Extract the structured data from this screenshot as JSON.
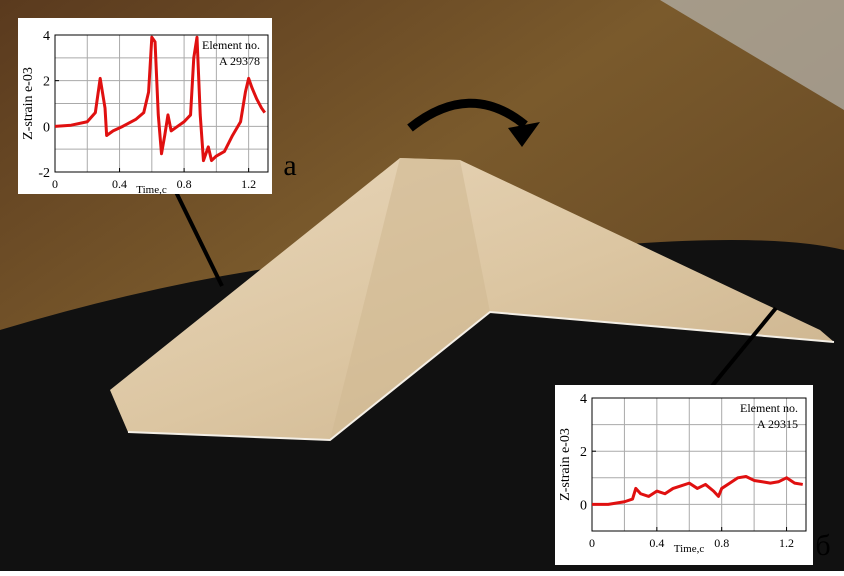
{
  "chart_data": [
    {
      "type": "line",
      "y_label": "Z-strain e-03",
      "x_label": "Time,c",
      "annotations": [
        "Element no.",
        "A 29378"
      ],
      "panel_label": "а",
      "color": "#e01010",
      "xlim": [
        0,
        1.32
      ],
      "xticks": [
        0,
        0.4,
        0.8,
        1.2
      ],
      "xgrid": [
        0.2,
        0.4,
        0.6,
        0.8,
        1.0,
        1.2
      ],
      "ylim": [
        -2,
        4
      ],
      "yticks": [
        -2,
        0,
        2,
        4
      ],
      "ygrid": [
        -1,
        0,
        1,
        2,
        3
      ],
      "x": [
        0,
        0.1,
        0.2,
        0.25,
        0.28,
        0.31,
        0.32,
        0.36,
        0.42,
        0.5,
        0.55,
        0.58,
        0.6,
        0.62,
        0.64,
        0.66,
        0.68,
        0.7,
        0.72,
        0.76,
        0.8,
        0.84,
        0.86,
        0.88,
        0.9,
        0.92,
        0.95,
        0.97,
        1.0,
        1.05,
        1.1,
        1.15,
        1.18,
        1.2,
        1.22,
        1.25,
        1.28,
        1.3
      ],
      "values": [
        0,
        0.05,
        0.2,
        0.6,
        2.1,
        0.8,
        -0.4,
        -0.2,
        0,
        0.3,
        0.6,
        1.5,
        3.9,
        3.7,
        0.5,
        -1.2,
        -0.4,
        0.5,
        -0.2,
        0,
        0.2,
        0.5,
        3.0,
        3.9,
        0.5,
        -1.5,
        -0.9,
        -1.5,
        -1.3,
        -1.1,
        -0.4,
        0.2,
        1.5,
        2.1,
        1.7,
        1.2,
        0.8,
        0.6
      ]
    },
    {
      "type": "line",
      "y_label": "Z-strain e-03",
      "x_label": "Time,c",
      "annotations": [
        "Element no.",
        "A 29315"
      ],
      "panel_label": "б",
      "color": "#e01010",
      "xlim": [
        0,
        1.32
      ],
      "xticks": [
        0,
        0.4,
        0.8,
        1.2
      ],
      "xgrid": [
        0.2,
        0.4,
        0.6,
        0.8,
        1.0,
        1.2
      ],
      "ylim": [
        -1,
        4
      ],
      "yticks": [
        0,
        2,
        4
      ],
      "ygrid": [
        0,
        1,
        2,
        3
      ],
      "x": [
        0,
        0.1,
        0.2,
        0.25,
        0.27,
        0.3,
        0.35,
        0.4,
        0.45,
        0.5,
        0.55,
        0.6,
        0.65,
        0.7,
        0.75,
        0.78,
        0.8,
        0.85,
        0.9,
        0.95,
        1.0,
        1.05,
        1.1,
        1.15,
        1.2,
        1.25,
        1.3
      ],
      "values": [
        0,
        0,
        0.1,
        0.2,
        0.6,
        0.4,
        0.3,
        0.5,
        0.4,
        0.6,
        0.7,
        0.8,
        0.6,
        0.75,
        0.5,
        0.3,
        0.6,
        0.8,
        1.0,
        1.05,
        0.9,
        0.85,
        0.8,
        0.85,
        1.0,
        0.8,
        0.75
      ]
    }
  ]
}
